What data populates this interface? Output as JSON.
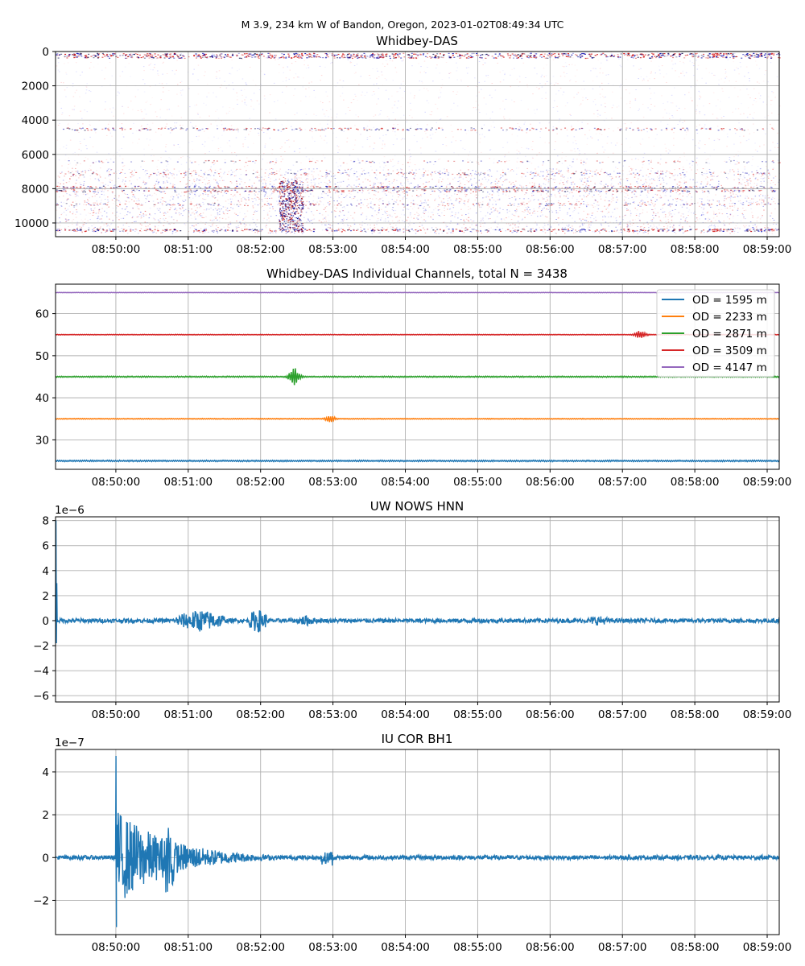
{
  "figure": {
    "suptitle": "M 3.9, 234 km W of Bandon, Oregon, 2023-01-02T08:49:34 UTC"
  },
  "chart_data": [
    {
      "type": "heatmap",
      "title": "Whidbey-DAS",
      "xlabel": "",
      "ylabel": "",
      "x_ticks": [
        "08:50:00",
        "08:51:00",
        "08:52:00",
        "08:53:00",
        "08:54:00",
        "08:55:00",
        "08:56:00",
        "08:57:00",
        "08:58:00",
        "08:59:00"
      ],
      "x_range": [
        "08:49:10",
        "08:59:10"
      ],
      "y_ticks": [
        0,
        2000,
        4000,
        6000,
        8000,
        10000
      ],
      "y_range": [
        10800,
        0
      ],
      "y_inverted": true,
      "colormap": "seismic",
      "grid": true,
      "bands": [
        {
          "y": 150,
          "intensity": 1.0
        },
        {
          "y": 300,
          "intensity": 0.9
        },
        {
          "y": 4500,
          "intensity": 0.55
        },
        {
          "y": 6400,
          "intensity": 0.25
        },
        {
          "y": 7100,
          "intensity": 0.35
        },
        {
          "y": 7900,
          "intensity": 0.7
        },
        {
          "y": 8100,
          "intensity": 0.6
        },
        {
          "y": 8900,
          "intensity": 0.35
        },
        {
          "y": 10400,
          "intensity": 0.85
        }
      ],
      "event": {
        "time": "08:52:25",
        "y_from": 7500,
        "y_to": 10500
      }
    },
    {
      "type": "line",
      "title": "Whidbey-DAS Individual Channels, total N = 3438",
      "xlabel": "",
      "ylabel": "",
      "x_ticks": [
        "08:50:00",
        "08:51:00",
        "08:52:00",
        "08:53:00",
        "08:54:00",
        "08:55:00",
        "08:56:00",
        "08:57:00",
        "08:58:00",
        "08:59:00"
      ],
      "x_range": [
        "08:49:10",
        "08:59:10"
      ],
      "y_ticks": [
        30,
        40,
        50,
        60
      ],
      "y_range": [
        23,
        67
      ],
      "grid": true,
      "legend_position": "upper right",
      "series": [
        {
          "name": "OD = 1595 m",
          "color": "#1f77b4",
          "offset": 25,
          "noise": 0.18,
          "events": []
        },
        {
          "name": "OD = 2233 m",
          "color": "#ff7f0e",
          "offset": 35,
          "noise": 0.1,
          "events": [
            {
              "time": "08:52:58",
              "amplitude": 0.7
            }
          ]
        },
        {
          "name": "OD = 2871 m",
          "color": "#2ca02c",
          "offset": 45,
          "noise": 0.15,
          "events": [
            {
              "time": "08:52:28",
              "amplitude": 2.0
            }
          ]
        },
        {
          "name": "OD = 3509 m",
          "color": "#d62728",
          "offset": 55,
          "noise": 0.08,
          "events": [
            {
              "time": "08:57:15",
              "amplitude": 1.0
            }
          ]
        },
        {
          "name": "OD = 4147 m",
          "color": "#9467bd",
          "offset": 65,
          "noise": 0.05,
          "events": []
        }
      ]
    },
    {
      "type": "line",
      "title": "UW NOWS HNN",
      "xlabel": "",
      "ylabel": "",
      "offset_label": "1e−6",
      "x_ticks": [
        "08:50:00",
        "08:51:00",
        "08:52:00",
        "08:53:00",
        "08:54:00",
        "08:55:00",
        "08:56:00",
        "08:57:00",
        "08:58:00",
        "08:59:00"
      ],
      "x_range": [
        "08:49:10",
        "08:59:10"
      ],
      "y_ticks": [
        -6,
        -4,
        -2,
        0,
        2,
        4,
        6,
        8
      ],
      "y_range": [
        -6.5,
        8.3
      ],
      "grid": true,
      "series": [
        {
          "name": "",
          "color": "#1f77b4",
          "noise_level": 0.17,
          "spike": {
            "time": "08:49:10",
            "max": 8.0,
            "min": -1.8
          },
          "bursts": [
            {
              "start": "08:50:50",
              "end": "08:51:30",
              "amplitude": 0.9
            },
            {
              "start": "08:51:50",
              "end": "08:52:05",
              "amplitude": 1.0
            },
            {
              "start": "08:52:30",
              "end": "08:52:45",
              "amplitude": 0.45
            },
            {
              "start": "08:56:30",
              "end": "08:56:50",
              "amplitude": 0.4
            }
          ]
        }
      ]
    },
    {
      "type": "line",
      "title": "IU COR BH1",
      "xlabel": "",
      "ylabel": "",
      "offset_label": "1e−7",
      "x_ticks": [
        "08:50:00",
        "08:51:00",
        "08:52:00",
        "08:53:00",
        "08:54:00",
        "08:55:00",
        "08:56:00",
        "08:57:00",
        "08:58:00",
        "08:59:00"
      ],
      "x_range": [
        "08:49:10",
        "08:59:10"
      ],
      "y_ticks": [
        -2,
        0,
        2,
        4
      ],
      "y_range": [
        -3.6,
        5.05
      ],
      "grid": true,
      "series": [
        {
          "name": "",
          "color": "#1f77b4",
          "noise_level": 0.1,
          "onset": {
            "time": "08:50:00",
            "max": 4.75,
            "min": -3.25,
            "decay_end": "08:52:20"
          },
          "bursts": [
            {
              "start": "08:50:40",
              "end": "08:50:48",
              "amplitude": 2.2
            },
            {
              "start": "08:52:50",
              "end": "08:53:00",
              "amplitude": 0.4
            }
          ]
        }
      ]
    }
  ]
}
